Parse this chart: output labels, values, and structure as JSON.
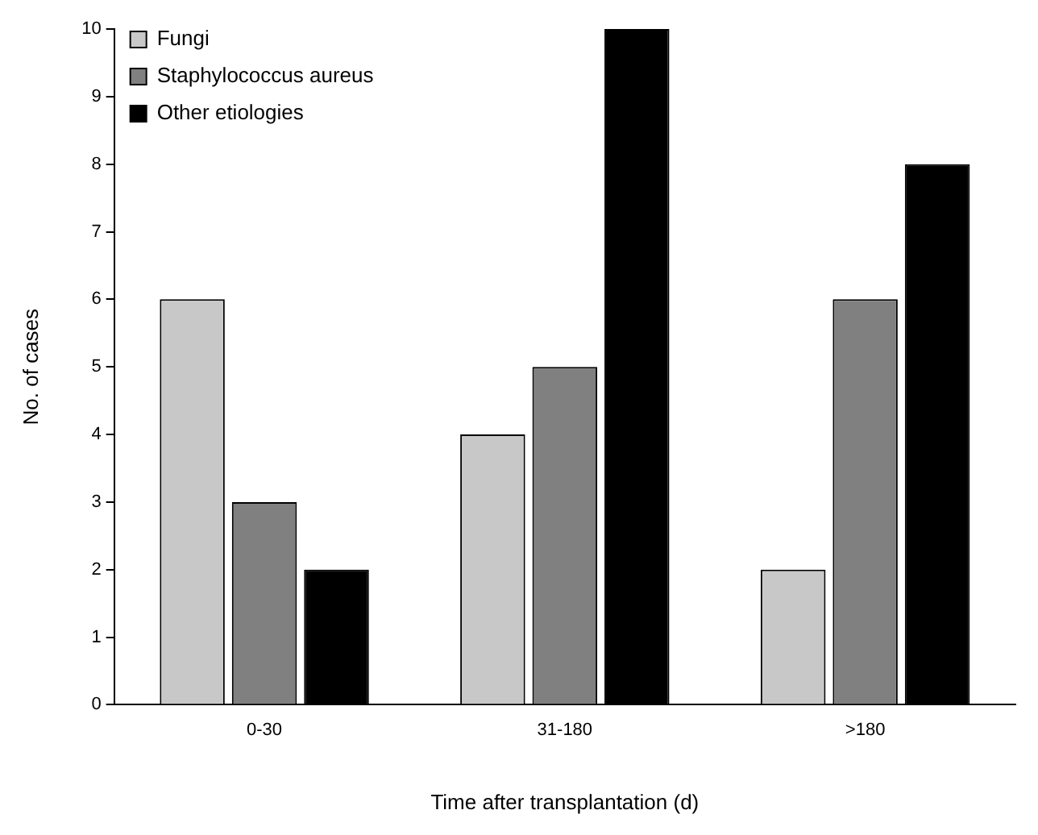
{
  "chart_data": {
    "type": "bar",
    "xlabel": "Time after transplantation (d)",
    "ylabel": "No. of cases",
    "categories": [
      "0-30",
      "31-180",
      ">180"
    ],
    "series": [
      {
        "name": "Fungi",
        "color": "#c8c8c8",
        "values": [
          6,
          4,
          2
        ]
      },
      {
        "name": "Staphylococcus aureus",
        "color": "#808080",
        "values": [
          3,
          5,
          6
        ]
      },
      {
        "name": "Other etiologies",
        "color": "#000000",
        "values": [
          2,
          10,
          8
        ]
      }
    ],
    "ylim": [
      0,
      10
    ],
    "yticks": [
      0,
      1,
      2,
      3,
      4,
      5,
      6,
      7,
      8,
      9,
      10
    ],
    "grid": false,
    "legend": "top left"
  }
}
